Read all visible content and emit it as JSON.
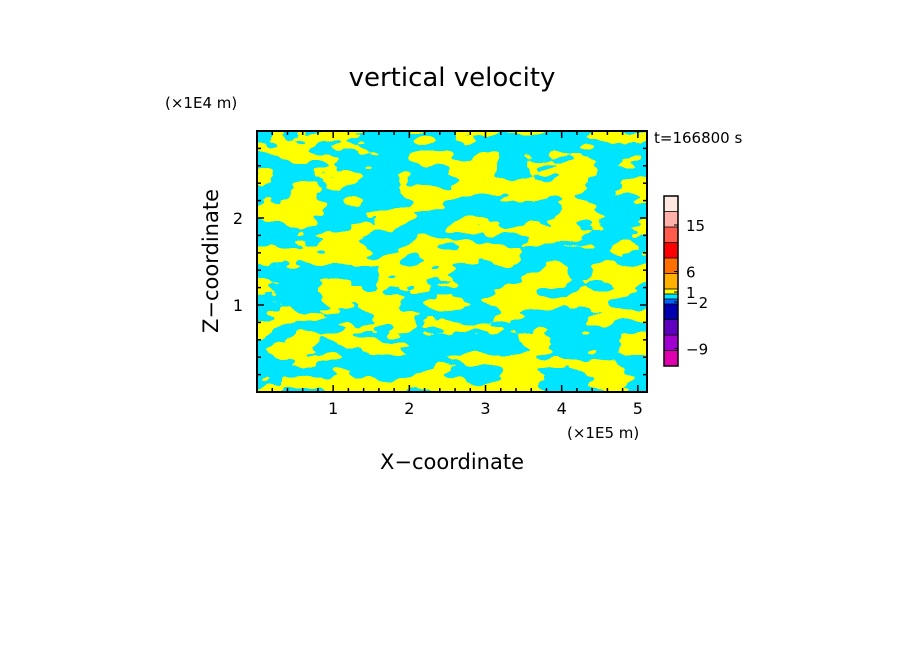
{
  "chart_data": {
    "type": "heatmap",
    "title": "vertical velocity",
    "xlabel": "X−coordinate",
    "ylabel": "Z−coordinate",
    "x_unit": "(×1E5 m)",
    "y_unit": "(×1E4 m)",
    "time_label": "t=166800 s",
    "x_ticks": [
      "1",
      "2",
      "3",
      "4",
      "5"
    ],
    "y_ticks": [
      "1",
      "2"
    ],
    "xlim": [
      0,
      5.12
    ],
    "ylim": [
      0,
      3.0
    ],
    "dominant_colors": {
      "positive": "#ffff00",
      "negative": "#00e5ff"
    },
    "colorbar": {
      "labels": [
        "15",
        "6",
        "1",
        "−2",
        "−9"
      ],
      "levels_top_to_bottom": [
        {
          "color": "#ffe8e0"
        },
        {
          "color": "#ffb0a8"
        },
        {
          "color": "#ff5c4c"
        },
        {
          "color": "#ff0000"
        },
        {
          "color": "#ff7000"
        },
        {
          "color": "#ffb000"
        },
        {
          "color": "#ffff00"
        },
        {
          "color": "#00e5ff"
        },
        {
          "color": "#0066ff"
        },
        {
          "color": "#0000b0"
        },
        {
          "color": "#6000c0"
        },
        {
          "color": "#a000d0"
        },
        {
          "color": "#e000b0"
        }
      ]
    }
  }
}
